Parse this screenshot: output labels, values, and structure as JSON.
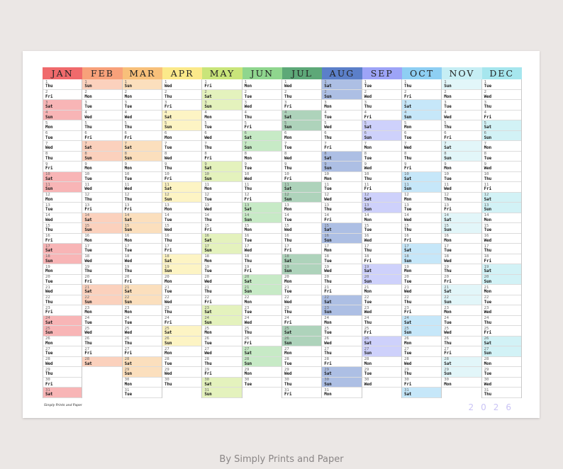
{
  "months": [
    {
      "label": "JAN",
      "color": "#f06a6c",
      "shade": "#f8b5b6",
      "days": 31,
      "start": 4
    },
    {
      "label": "FEB",
      "color": "#f8a17a",
      "shade": "#fbd1bd",
      "days": 28,
      "start": 0
    },
    {
      "label": "MAR",
      "color": "#f8c07a",
      "shade": "#fbdfbd",
      "days": 31,
      "start": 0
    },
    {
      "label": "APR",
      "color": "#fbe98a",
      "shade": "#fdf4c4",
      "days": 30,
      "start": 3
    },
    {
      "label": "MAY",
      "color": "#c9e57a",
      "shade": "#e4f2bd",
      "days": 31,
      "start": 5
    },
    {
      "label": "JUN",
      "color": "#8fd68e",
      "shade": "#c7eac6",
      "days": 30,
      "start": 1
    },
    {
      "label": "JUL",
      "color": "#5da878",
      "shade": "#aed3bb",
      "days": 31,
      "start": 3
    },
    {
      "label": "AUG",
      "color": "#5b7fc9",
      "shade": "#adbfe4",
      "days": 31,
      "start": 6
    },
    {
      "label": "SEP",
      "color": "#9da4f7",
      "shade": "#ced1fb",
      "days": 30,
      "start": 2
    },
    {
      "label": "OCT",
      "color": "#8ecff3",
      "shade": "#c6e7f9",
      "days": 31,
      "start": 4
    },
    {
      "label": "NOV",
      "color": "#c6eef4",
      "shade": "#e2f6f9",
      "days": 30,
      "start": 0
    },
    {
      "label": "DEC",
      "color": "#a6e6ee",
      "shade": "#d2f2f6",
      "days": 31,
      "start": 2
    }
  ],
  "weekdays": [
    "Sun",
    "Mon",
    "Tue",
    "Wed",
    "Thu",
    "Fri",
    "Sat"
  ],
  "brand": "Simply Prints and Paper",
  "year": "2026",
  "footer": "By Simply Prints and Paper"
}
